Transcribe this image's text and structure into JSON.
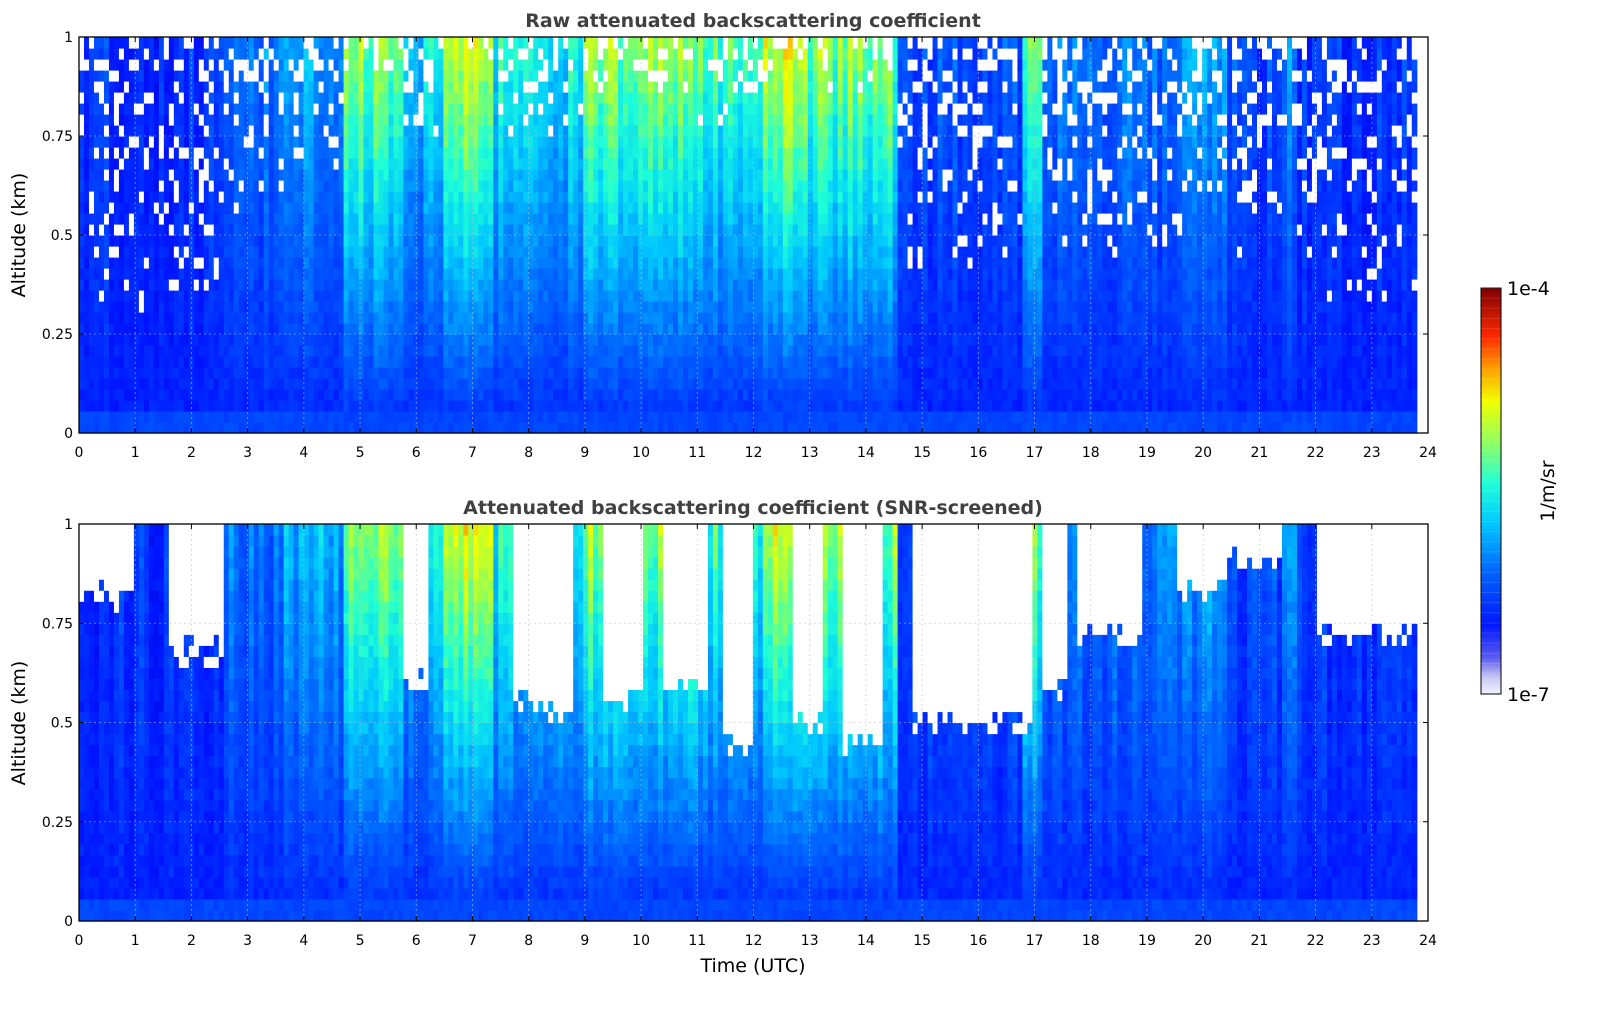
{
  "chart_data": [
    {
      "type": "heatmap",
      "title": "Raw attenuated backscattering coefficient",
      "xlabel": "",
      "ylabel": "Altitude (km)",
      "xlim": [
        0,
        24
      ],
      "ylim": [
        0,
        1
      ],
      "xticks": [
        "0",
        "1",
        "2",
        "3",
        "4",
        "5",
        "6",
        "7",
        "8",
        "9",
        "10",
        "11",
        "12",
        "13",
        "14",
        "15",
        "16",
        "17",
        "18",
        "19",
        "20",
        "21",
        "22",
        "23",
        "24"
      ],
      "yticks": [
        "0",
        "0.25",
        "0.5",
        "0.75",
        "1"
      ],
      "grid": true,
      "color_scale": "jet (log)",
      "data_end_time": 23.8,
      "columns": [
        {
          "x": [
            0.0,
            2.6
          ],
          "level": 0.18,
          "noise_top": 0.7
        },
        {
          "x": [
            2.6,
            3.6
          ],
          "level": 0.32,
          "noise_top": 0.45
        },
        {
          "x": [
            3.6,
            4.7
          ],
          "level": 0.38,
          "noise_top": 0.35
        },
        {
          "x": [
            4.7,
            5.8
          ],
          "level": 0.62,
          "noise_top": 0.1
        },
        {
          "x": [
            5.8,
            6.5
          ],
          "level": 0.45,
          "noise_top": 0.3
        },
        {
          "x": [
            6.5,
            7.4
          ],
          "level": 0.72,
          "noise_top": 0.05
        },
        {
          "x": [
            7.4,
            9.0
          ],
          "level": 0.5,
          "noise_top": 0.25
        },
        {
          "x": [
            9.0,
            11.0
          ],
          "level": 0.62,
          "noise_top": 0.15
        },
        {
          "x": [
            11.0,
            12.2
          ],
          "level": 0.55,
          "noise_top": 0.25
        },
        {
          "x": [
            12.2,
            13.0
          ],
          "level": 0.72,
          "noise_top": 0.1
        },
        {
          "x": [
            13.0,
            14.6
          ],
          "level": 0.62,
          "noise_top": 0.15
        },
        {
          "x": [
            14.6,
            16.8
          ],
          "level": 0.25,
          "noise_top": 0.6
        },
        {
          "x": [
            16.8,
            17.1
          ],
          "level": 0.6,
          "noise_top": 0.1
        },
        {
          "x": [
            17.1,
            19.6
          ],
          "level": 0.3,
          "noise_top": 0.55
        },
        {
          "x": [
            19.6,
            20.4
          ],
          "level": 0.38,
          "noise_top": 0.4
        },
        {
          "x": [
            20.4,
            21.4
          ],
          "level": 0.22,
          "noise_top": 0.65
        },
        {
          "x": [
            21.4,
            21.7
          ],
          "level": 0.38,
          "noise_top": 0.4
        },
        {
          "x": [
            21.7,
            23.8
          ],
          "level": 0.2,
          "noise_top": 0.7
        }
      ]
    },
    {
      "type": "heatmap",
      "title": "Attenuated backscattering coefficient (SNR-screened)",
      "xlabel": "Time (UTC)",
      "ylabel": "Altitude (km)",
      "xlim": [
        0,
        24
      ],
      "ylim": [
        0,
        1
      ],
      "xticks": [
        "0",
        "1",
        "2",
        "3",
        "4",
        "5",
        "6",
        "7",
        "8",
        "9",
        "10",
        "11",
        "12",
        "13",
        "14",
        "15",
        "16",
        "17",
        "18",
        "19",
        "20",
        "21",
        "22",
        "23",
        "24"
      ],
      "yticks": [
        "0",
        "0.25",
        "0.5",
        "0.75",
        "1"
      ],
      "grid": true,
      "color_scale": "jet (log)",
      "data_end_time": 23.8,
      "screened_regions": [
        {
          "x": [
            0.0,
            1.0
          ],
          "above_altitude": 0.82
        },
        {
          "x": [
            1.6,
            2.6
          ],
          "above_altitude": 0.68
        },
        {
          "x": [
            5.8,
            6.2
          ],
          "above_altitude": 0.6
        },
        {
          "x": [
            7.7,
            8.8
          ],
          "above_altitude": 0.55
        },
        {
          "x": [
            9.3,
            10.0
          ],
          "above_altitude": 0.55
        },
        {
          "x": [
            10.4,
            11.2
          ],
          "above_altitude": 0.6
        },
        {
          "x": [
            11.5,
            12.0
          ],
          "above_altitude": 0.45
        },
        {
          "x": [
            12.7,
            13.2
          ],
          "above_altitude": 0.5
        },
        {
          "x": [
            13.6,
            14.3
          ],
          "above_altitude": 0.45
        },
        {
          "x": [
            14.8,
            17.0
          ],
          "above_altitude": 0.5
        },
        {
          "x": [
            17.1,
            17.6
          ],
          "above_altitude": 0.58
        },
        {
          "x": [
            17.8,
            18.9
          ],
          "above_altitude": 0.72
        },
        {
          "x": [
            19.5,
            20.4
          ],
          "above_altitude": 0.85
        },
        {
          "x": [
            20.4,
            21.4
          ],
          "above_altitude": 0.9
        },
        {
          "x": [
            22.0,
            23.8
          ],
          "above_altitude": 0.72
        }
      ]
    }
  ],
  "colorbar": {
    "label": "1/m/sr",
    "max_label": "1e-4",
    "min_label": "1e-7",
    "scale": "log",
    "min": 1e-07,
    "max": 0.0001
  },
  "colors": {
    "low": "#0018ff",
    "mid": "#00e0ff",
    "high": "#ffe000",
    "max": "#8b0000",
    "screened": "#ffffff"
  }
}
